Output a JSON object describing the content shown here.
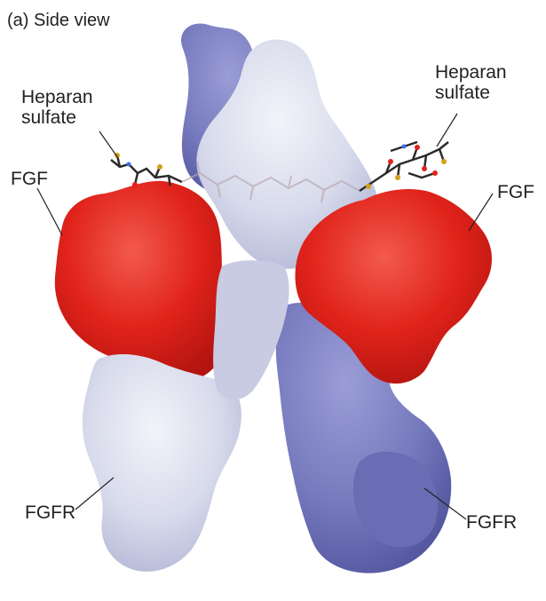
{
  "figure": {
    "title": "(a)  Side view",
    "labels": {
      "heparan_left": [
        "Heparan",
        "sulfate"
      ],
      "heparan_right": [
        "Heparan",
        "sulfate"
      ],
      "fgf_left": "FGF",
      "fgf_right": "FGF",
      "fgfr_left": "FGFR",
      "fgfr_right": "FGFR"
    }
  },
  "colors": {
    "fgf": "#e0231b",
    "fgfr_light": "#d8dbec",
    "fgfr_dark": "#7679bd",
    "heparan": "#2b2b2b",
    "label_text": "#231f20"
  }
}
